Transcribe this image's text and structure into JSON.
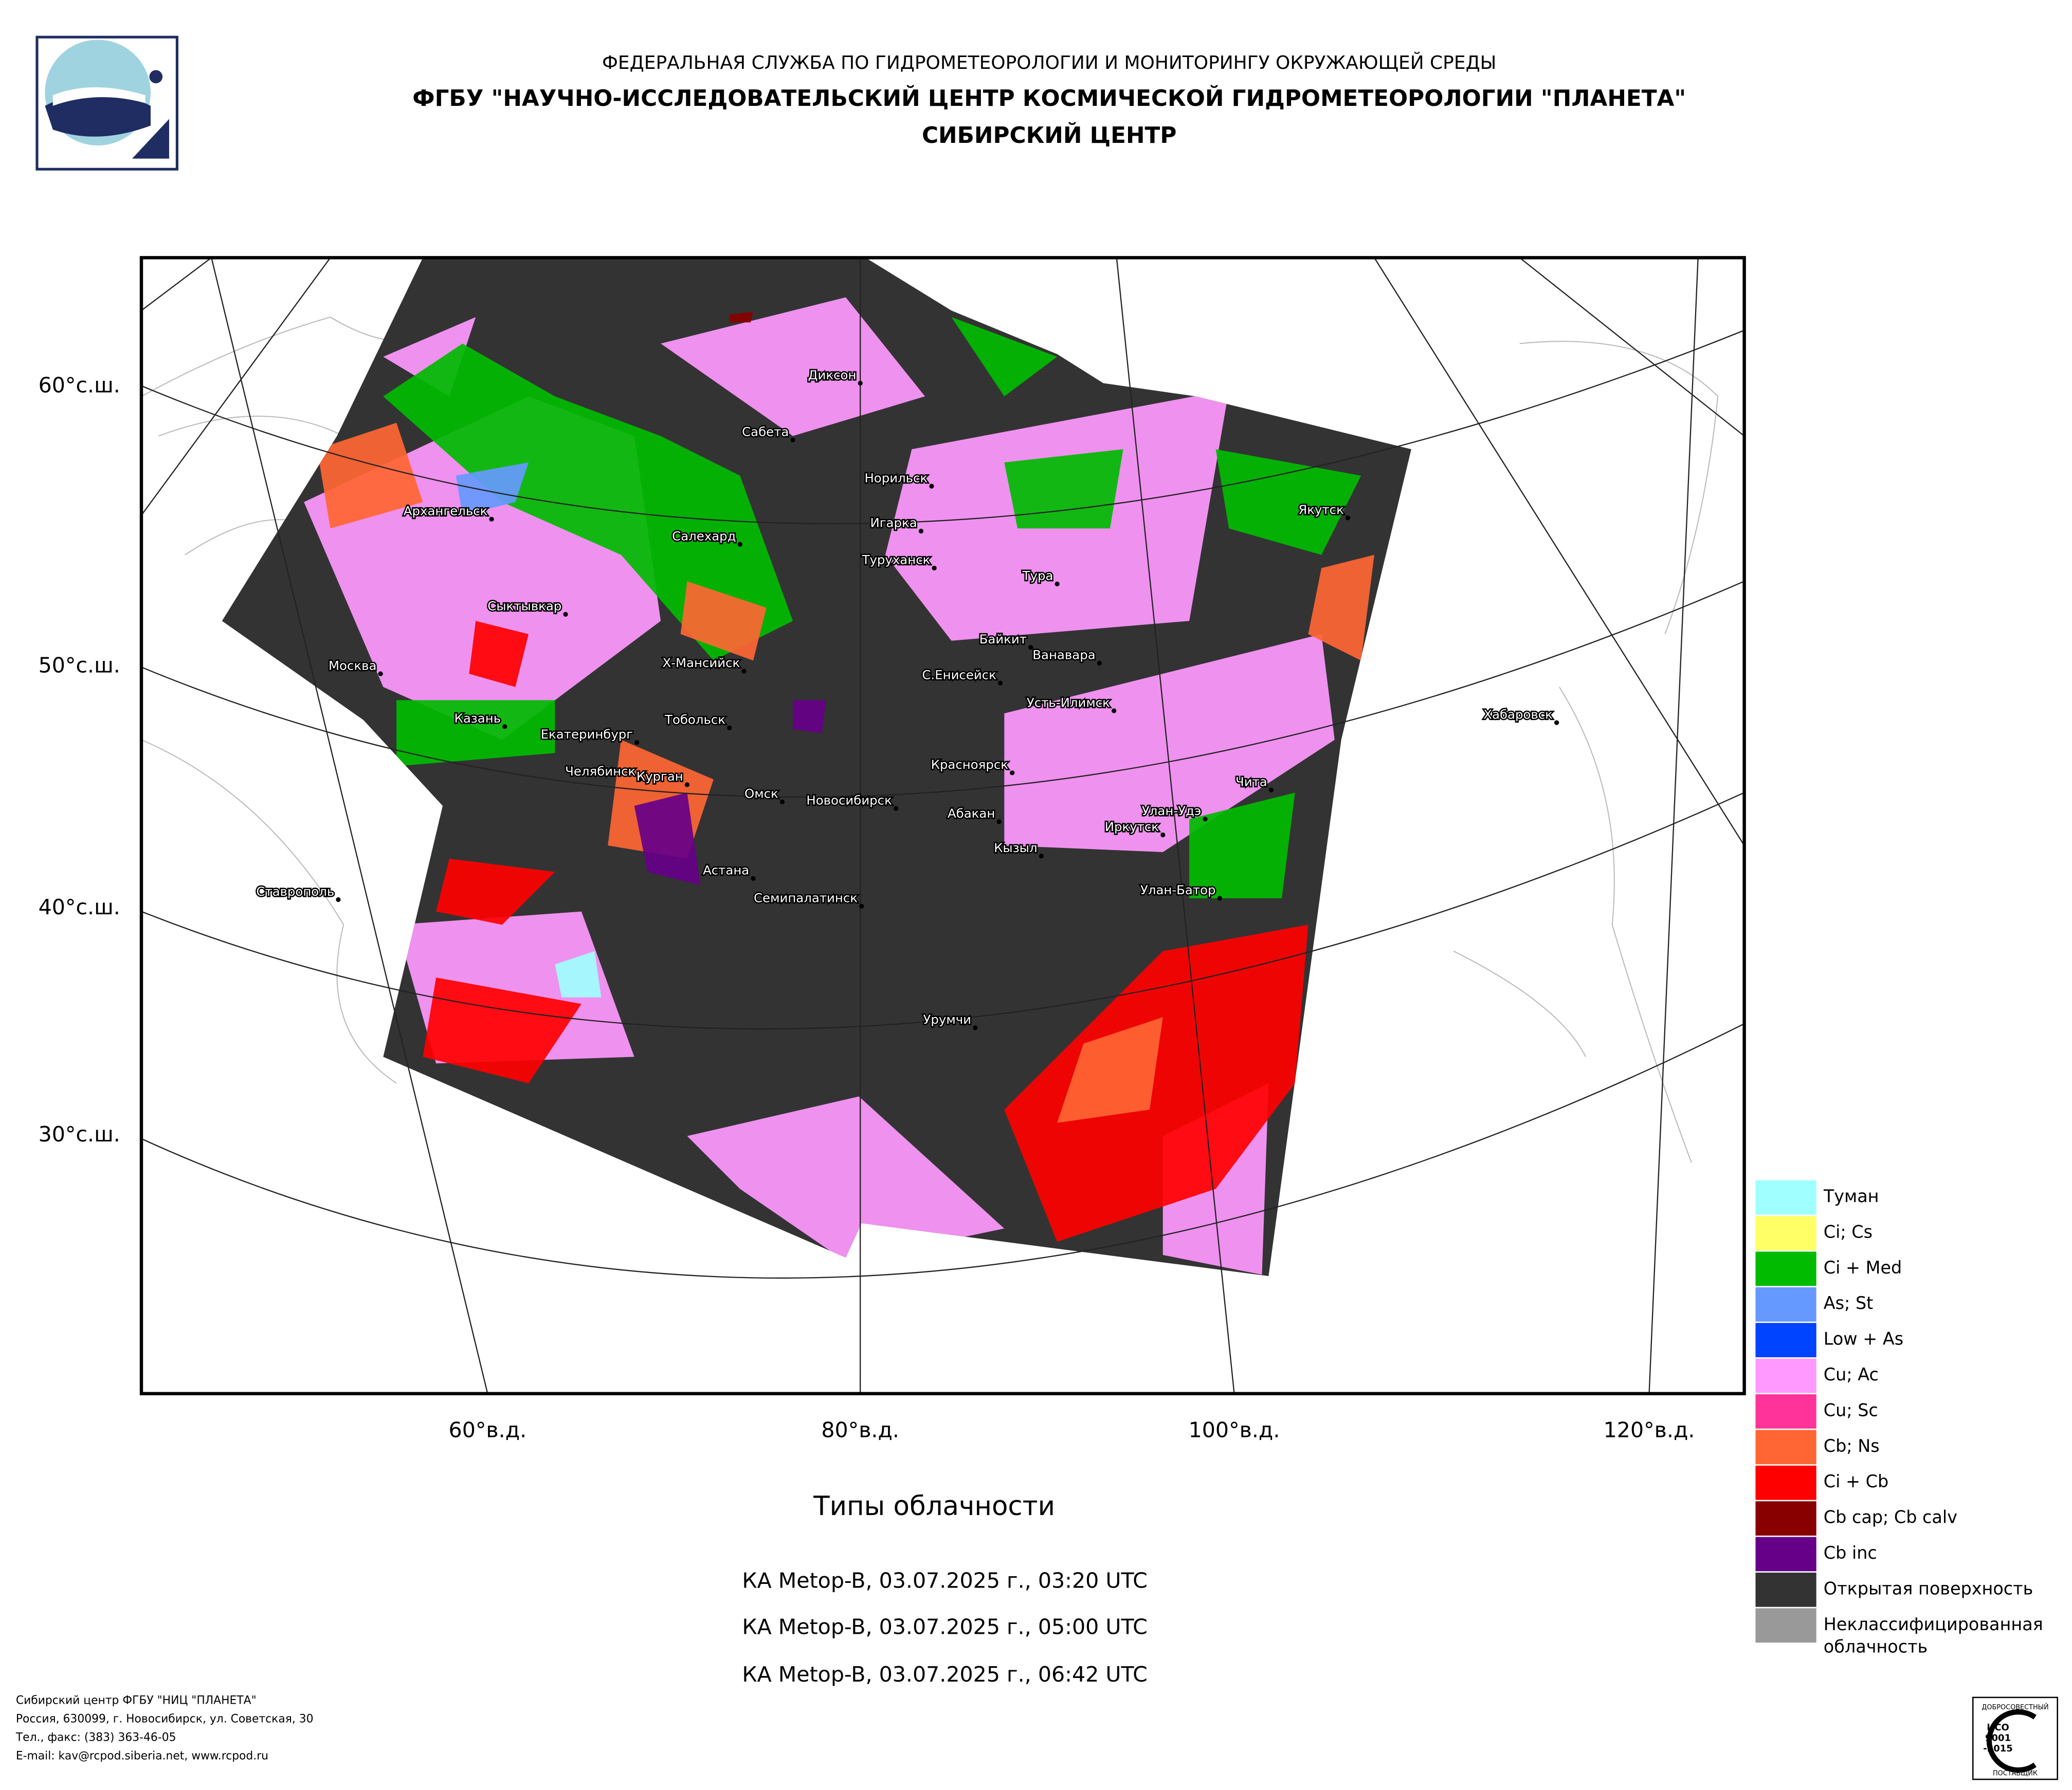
{
  "header": {
    "line1": "ФЕДЕРАЛЬНАЯ СЛУЖБА ПО ГИДРОМЕТЕОРОЛОГИИ И МОНИТОРИНГУ ОКРУЖАЮЩЕЙ СРЕДЫ",
    "line2": "ФГБУ \"НАУЧНО-ИССЛЕДОВАТЕЛЬСКИЙ ЦЕНТР КОСМИЧЕСКОЙ ГИДРОМЕТЕОРОЛОГИИ \"ПЛАНЕТА\"",
    "line3": "СИБИРСКИЙ ЦЕНТР"
  },
  "map": {
    "lat_labels": [
      "60°с.ш.",
      "50°с.ш.",
      "40°с.ш.",
      "30°с.ш."
    ],
    "lon_labels": [
      "60°в.д.",
      "80°в.д.",
      "100°в.д.",
      "120°в.д."
    ],
    "cities": [
      "Диксон",
      "Сабета",
      "Норильск",
      "Игарка",
      "Туруханск",
      "Тура",
      "Архангельск",
      "Салехард",
      "Сыктывкар",
      "Якутск",
      "Байкит",
      "Ванавара",
      "Москва",
      "Х-Мансийск",
      "С.Енисейск",
      "Усть-Илимск",
      "Хабаровск",
      "Казань",
      "Тобольск",
      "Екатеринбург",
      "Красноярск",
      "Челябинск",
      "Курган",
      "Омск",
      "Новосибирск",
      "Чита",
      "Абакан",
      "Улан-Удэ",
      "Иркутск",
      "Кызыл",
      "Ставрополь",
      "Астана",
      "Семипалатинск",
      "Улан-Батор",
      "Урумчи"
    ],
    "title": "Типы облачности",
    "passes": [
      "КА Metop-B, 03.07.2025 г., 03:20 UTC",
      "КА Metop-B, 03.07.2025 г., 05:00 UTC",
      "КА Metop-B, 03.07.2025 г., 06:42 UTC"
    ]
  },
  "legend": [
    {
      "label": "Туман",
      "color": "#a0ffff"
    },
    {
      "label": "Ci; Cs",
      "color": "#ffff66"
    },
    {
      "label": "Ci + Med",
      "color": "#00bb00"
    },
    {
      "label": "As; St",
      "color": "#6699ff"
    },
    {
      "label": "Low + As",
      "color": "#0044ff"
    },
    {
      "label": "Cu; Ac",
      "color": "#ff99ff"
    },
    {
      "label": "Cu; Sc",
      "color": "#ff3399"
    },
    {
      "label": "Cb; Ns",
      "color": "#ff6633"
    },
    {
      "label": "Ci + Cb",
      "color": "#ff0000"
    },
    {
      "label": "Cb cap; Cb calv",
      "color": "#880000"
    },
    {
      "label": "Cb inc",
      "color": "#660088"
    },
    {
      "label": "Открытая поверхность",
      "color": "#333333"
    },
    {
      "label": "Неклассифицированная облачность",
      "color": "#999999"
    }
  ],
  "footer": {
    "lines": [
      "Сибирский центр ФГБУ \"НИЦ \"ПЛАНЕТА\"",
      "Россия, 630099, г. Новосибирск, ул. Советская, 30",
      "Тел., факс: (383) 363-46-05",
      "E-mail: kav@rcpod.siberia.net, www.rcpod.ru"
    ]
  },
  "certificate": {
    "top": "ДОБРОСОВЕСТНЫЙ",
    "lines": [
      "ИСО",
      "9001",
      "-2015"
    ],
    "bottom": "ПОСТАВЩИК"
  }
}
